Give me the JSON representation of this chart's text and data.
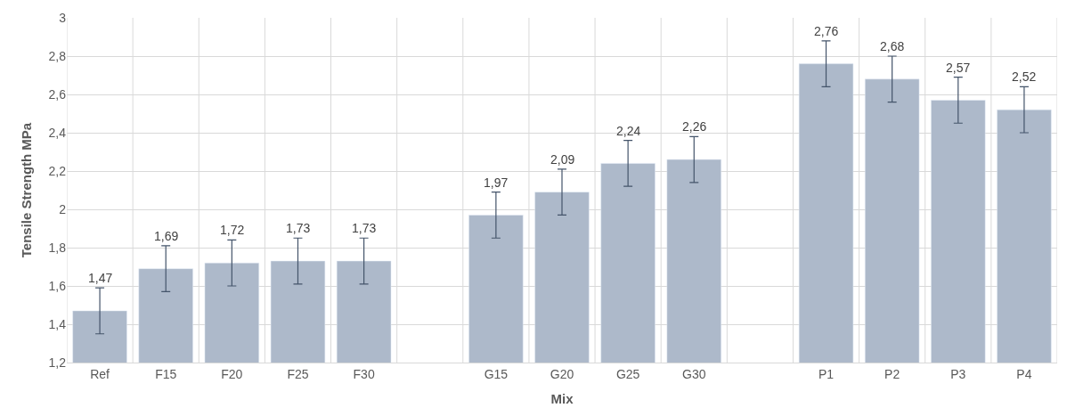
{
  "chart_data": {
    "type": "bar",
    "xlabel": "Mix",
    "ylabel": "Tensile Strength MPa",
    "categories": [
      "Ref",
      "F15",
      "F20",
      "F25",
      "F30",
      null,
      "G15",
      "G20",
      "G25",
      "G30",
      null,
      "P1",
      "P2",
      "P3",
      "P4"
    ],
    "values": [
      1.47,
      1.69,
      1.72,
      1.73,
      1.73,
      null,
      1.97,
      2.09,
      2.24,
      2.26,
      null,
      2.76,
      2.68,
      2.57,
      2.52
    ],
    "errors": [
      0.12,
      0.12,
      0.12,
      0.12,
      0.12,
      null,
      0.12,
      0.12,
      0.12,
      0.12,
      null,
      0.12,
      0.12,
      0.12,
      0.12
    ],
    "value_labels": [
      "1,47",
      "1,69",
      "1,72",
      "1,73",
      "1,73",
      null,
      "1,97",
      "2,09",
      "2,24",
      "2,26",
      null,
      "2,76",
      "2,68",
      "2,57",
      "2,52"
    ],
    "color": "#adb9ca",
    "ylim": [
      1.2,
      3
    ],
    "yticks": [
      {
        "value": 1.2,
        "label": "1,2"
      },
      {
        "value": 1.4,
        "label": "1,4"
      },
      {
        "value": 1.6,
        "label": "1,6"
      },
      {
        "value": 1.8,
        "label": "1,8"
      },
      {
        "value": 2,
        "label": "2"
      },
      {
        "value": 2.2,
        "label": "2,2"
      },
      {
        "value": 2.4,
        "label": "2,4"
      },
      {
        "value": 2.6,
        "label": "2,6"
      },
      {
        "value": 2.8,
        "label": "2,8"
      },
      {
        "value": 3,
        "label": "3"
      }
    ],
    "grid": true,
    "legend": false
  }
}
